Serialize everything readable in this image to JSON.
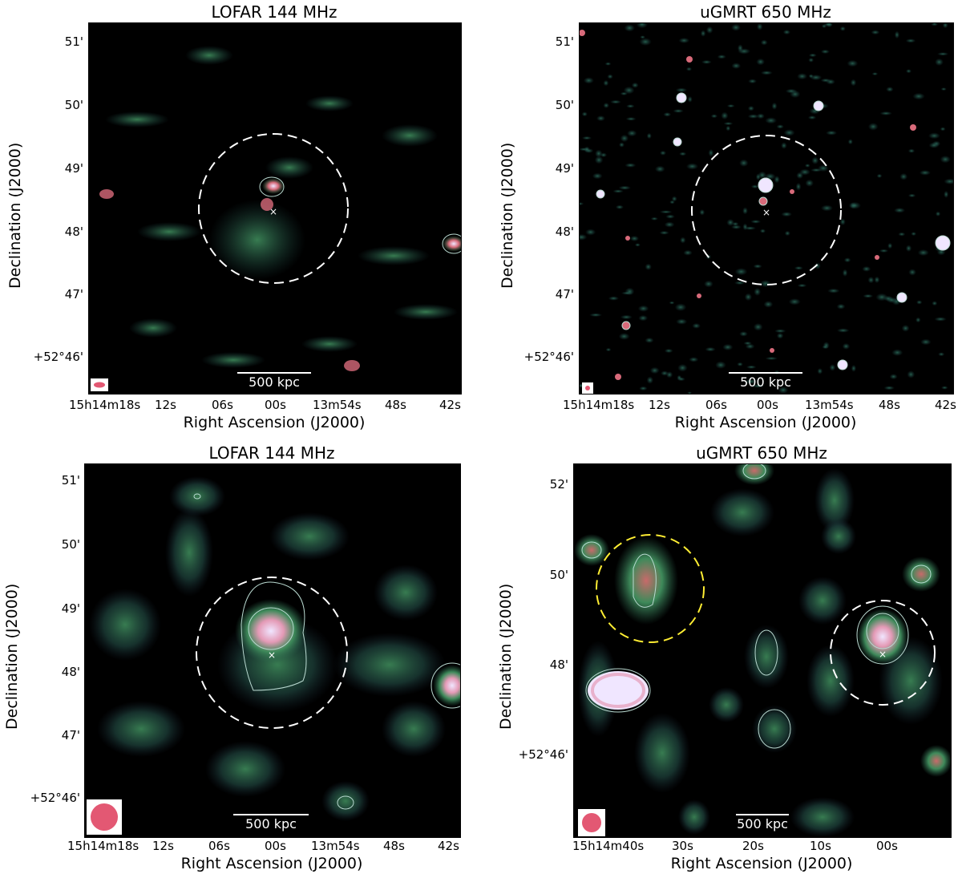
{
  "panels": [
    {
      "title": "LOFAR 144 MHz",
      "xlabel": "Right Ascension (J2000)",
      "ylabel": "Declination (J2000)",
      "xticks": [
        "15h14m18s",
        "12s",
        "06s",
        "00s",
        "13m54s",
        "48s",
        "42s"
      ],
      "yticks": [
        "51'",
        "50'",
        "49'",
        "48'",
        "47'",
        "+52°46'"
      ],
      "scalebar": "500 kpc"
    },
    {
      "title": "uGMRT 650 MHz",
      "xlabel": "Right Ascension (J2000)",
      "ylabel": "Declination (J2000)",
      "xticks": [
        "15h14m18s",
        "12s",
        "06s",
        "00s",
        "13m54s",
        "48s",
        "42s"
      ],
      "yticks": [
        "51'",
        "50'",
        "49'",
        "48'",
        "47'",
        "+52°46'"
      ],
      "scalebar": "500 kpc"
    },
    {
      "title": "LOFAR 144 MHz",
      "xlabel": "Right Ascension (J2000)",
      "ylabel": "Declination (J2000)",
      "xticks": [
        "15h14m18s",
        "12s",
        "06s",
        "00s",
        "13m54s",
        "48s",
        "42s"
      ],
      "yticks": [
        "51'",
        "50'",
        "49'",
        "48'",
        "47'",
        "+52°46'"
      ],
      "scalebar": "500 kpc"
    },
    {
      "title": "uGMRT 650 MHz",
      "xlabel": "Right Ascension (J2000)",
      "ylabel": "Declination (J2000)",
      "xticks": [
        "15h14m40s",
        "30s",
        "20s",
        "10s",
        "00s"
      ],
      "yticks": [
        "52'",
        "50'",
        "48'",
        "+52°46'"
      ],
      "scalebar": "500 kpc"
    }
  ],
  "colors": {
    "background": "#000000",
    "emission_low": "#1f4a4a",
    "emission_mid": "#3e8a5a",
    "emission_high": "#d86a7a",
    "emission_peak": "#f0e6ff",
    "beam": "#e35873",
    "circle_main": "#ffffff",
    "circle_secondary": "#ffee33"
  }
}
